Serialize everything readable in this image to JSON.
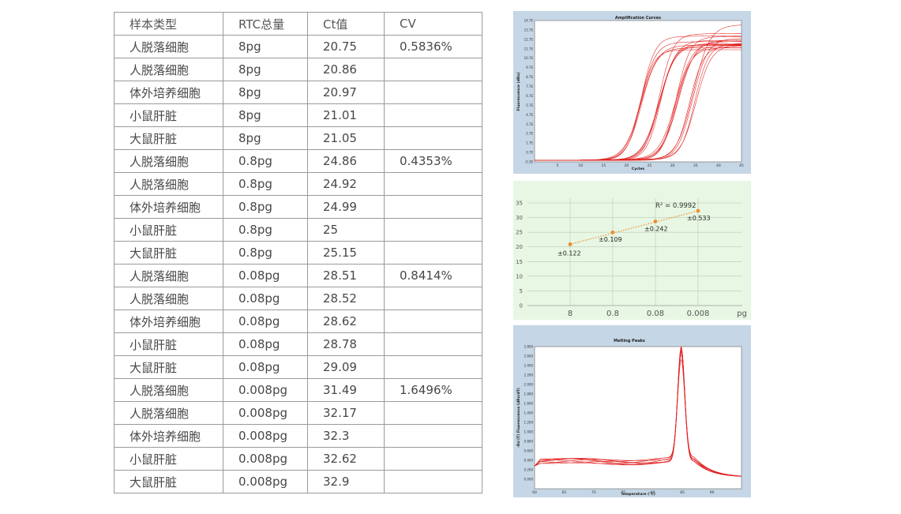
{
  "table": {
    "headers": [
      "样本类型",
      "RTC总量",
      "Ct值",
      "CV"
    ],
    "rows": [
      [
        "人脱落细胞",
        "8pg",
        "20.75",
        "0.5836%"
      ],
      [
        "人脱落细胞",
        "8pg",
        "20.86",
        ""
      ],
      [
        "体外培养细胞",
        "8pg",
        "20.97",
        ""
      ],
      [
        "小鼠肝脏",
        "8pg",
        "21.01",
        ""
      ],
      [
        "大鼠肝脏",
        "8pg",
        "21.05",
        ""
      ],
      [
        "人脱落细胞",
        "0.8pg",
        "24.86",
        "0.4353%"
      ],
      [
        "人脱落细胞",
        "0.8pg",
        "24.92",
        ""
      ],
      [
        "体外培养细胞",
        "0.8pg",
        "24.99",
        ""
      ],
      [
        "小鼠肝脏",
        "0.8pg",
        "25",
        ""
      ],
      [
        "大鼠肝脏",
        "0.8pg",
        "25.15",
        ""
      ],
      [
        "人脱落细胞",
        "0.08pg",
        "28.51",
        "0.8414%"
      ],
      [
        "人脱落细胞",
        "0.08pg",
        "28.52",
        ""
      ],
      [
        "体外培养细胞",
        "0.08pg",
        "28.62",
        ""
      ],
      [
        "小鼠肝脏",
        "0.08pg",
        "28.78",
        ""
      ],
      [
        "大鼠肝脏",
        "0.08pg",
        "29.09",
        ""
      ],
      [
        "人脱落细胞",
        "0.008pg",
        "31.49",
        "1.6496%"
      ],
      [
        "人脱落细胞",
        "0.008pg",
        "32.17",
        ""
      ],
      [
        "体外培养细胞",
        "0.008pg",
        "32.3",
        ""
      ],
      [
        "小鼠肝脏",
        "0.008pg",
        "32.62",
        ""
      ],
      [
        "大鼠肝脏",
        "0.008pg",
        "32.9",
        ""
      ]
    ]
  },
  "colors": {
    "curve_red": "#e02020",
    "trend_orange": "#f08a30",
    "amp_bg": "#c5d6e6",
    "std_bg": "#e7f7e3"
  },
  "chart_data": [
    {
      "type": "line",
      "title": "Amplification Curves",
      "xlabel": "Cycles",
      "ylabel": "Fluorescence (dRn)",
      "xlim": [
        0,
        45
      ],
      "ylim": [
        -0.3,
        14.7
      ],
      "xticks": [
        "5",
        "10",
        "15",
        "20",
        "25",
        "30",
        "35",
        "40",
        "45"
      ],
      "yticks": [
        "-0.3E",
        "0.7E",
        "1.7E",
        "2.7E",
        "3.7E",
        "4.7E",
        "5.7E",
        "6.7E",
        "7.7E",
        "8.7E",
        "9.7E",
        "10.7E",
        "11.7E",
        "12.7E",
        "13.7E",
        "14.7E"
      ],
      "series_ct": [
        20.75,
        20.86,
        20.97,
        21.01,
        21.05,
        24.86,
        24.92,
        24.99,
        25,
        25.15,
        28.51,
        28.52,
        28.62,
        28.78,
        29.09,
        31.49,
        32.17,
        32.3,
        32.62,
        32.9
      ],
      "plateau": [
        11.6,
        12.4,
        12.0,
        12.9,
        11.8,
        12.2,
        13.2,
        11.9,
        12.6,
        12.1,
        11.7,
        12.3,
        13.0,
        12.0,
        12.5,
        11.8,
        12.8,
        14.2,
        12.1,
        11.9
      ]
    },
    {
      "type": "scatter",
      "categories": [
        "8",
        "0.8",
        "0.08",
        "0.008"
      ],
      "xunit": "pg",
      "values": [
        20.9,
        24.98,
        28.7,
        32.3
      ],
      "ylim": [
        0,
        35
      ],
      "yticks": [
        "0",
        "5",
        "10",
        "15",
        "20",
        "25",
        "30",
        "35"
      ],
      "data_labels": [
        "±0.122",
        "±0.109",
        "±0.242",
        "±0.533"
      ],
      "annotation": "R² = 0.9992",
      "trendline": "linear"
    },
    {
      "type": "line",
      "title": "Melting Peaks",
      "xlabel": "Temperature (°C)",
      "ylabel": "-Rn'(T) Fluorescence (dRn/dT)",
      "xlim": [
        60,
        95
      ],
      "ylim": [
        -0.2,
        2.8
      ],
      "xticks": [
        "60",
        "65",
        "70",
        "75",
        "80",
        "85",
        "90"
      ],
      "yticks": [
        "0.000",
        "0.200",
        "0.400",
        "0.600",
        "0.800",
        "1.000",
        "1.200",
        "1.400",
        "1.600",
        "1.800",
        "2.000",
        "2.200",
        "2.400",
        "2.600",
        "2.800"
      ],
      "peak_temperature": 84.8,
      "peak_heights": [
        2.8,
        2.74,
        2.68,
        2.62,
        2.56,
        2.5,
        2.72,
        2.66
      ],
      "baseline": 0.38
    }
  ]
}
